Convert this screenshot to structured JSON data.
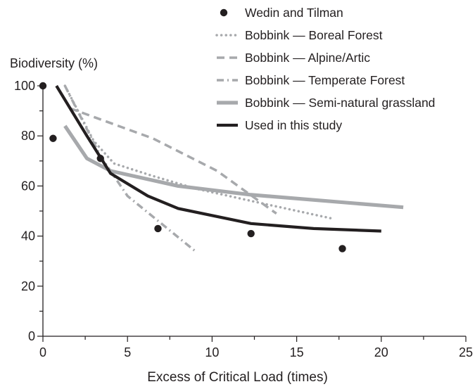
{
  "chart_data": {
    "type": "line",
    "title": "",
    "xlabel": "Excess of Critical Load (times)",
    "ylabel": "Biodiversity (%)",
    "xlim": [
      0,
      25
    ],
    "ylim": [
      0,
      100
    ],
    "x_ticks": [
      0,
      5,
      10,
      15,
      20,
      25
    ],
    "y_ticks": [
      0,
      20,
      40,
      60,
      80,
      100
    ],
    "grid": false,
    "legend_position": "top-right",
    "series": [
      {
        "name": "Wedin and Tilman",
        "kind": "scatter",
        "color": "#231f20",
        "points": [
          [
            0,
            100
          ],
          [
            0.6,
            79
          ],
          [
            3.4,
            71
          ],
          [
            6.8,
            43
          ],
          [
            12.3,
            41
          ],
          [
            17.7,
            35
          ]
        ]
      },
      {
        "name": "Bobbink — Boreal Forest",
        "kind": "line",
        "style": "dotted",
        "color": "#a7a9ac",
        "points": [
          [
            1.3,
            100
          ],
          [
            3.0,
            78
          ],
          [
            4.2,
            69
          ],
          [
            6.5,
            64
          ],
          [
            9.0,
            59
          ],
          [
            13.0,
            53
          ],
          [
            17.1,
            47
          ]
        ]
      },
      {
        "name": "Bobbink — Alpine/Artic",
        "kind": "line",
        "style": "dashed",
        "color": "#a7a9ac",
        "points": [
          [
            1.6,
            91
          ],
          [
            6.5,
            79
          ],
          [
            10.3,
            66
          ],
          [
            13.8,
            49
          ]
        ]
      },
      {
        "name": "Bobbink — Temperate Forest",
        "kind": "line",
        "style": "dashdot",
        "color": "#a7a9ac",
        "points": [
          [
            1.3,
            100
          ],
          [
            3.4,
            72
          ],
          [
            5.0,
            56
          ],
          [
            9.0,
            34
          ]
        ]
      },
      {
        "name": "Bobbink — Semi-natural grassland",
        "kind": "line",
        "style": "thick",
        "color": "#a7a9ac",
        "points": [
          [
            1.3,
            84
          ],
          [
            2.6,
            71
          ],
          [
            4.0,
            66
          ],
          [
            8.0,
            60
          ],
          [
            12.3,
            56.5
          ],
          [
            21.3,
            51.5
          ]
        ]
      },
      {
        "name": "Used in this study",
        "kind": "line",
        "style": "thick",
        "color": "#231f20",
        "points": [
          [
            0.8,
            100
          ],
          [
            2.6,
            80
          ],
          [
            4.0,
            65
          ],
          [
            6.2,
            56
          ],
          [
            8.0,
            51
          ],
          [
            12.3,
            45
          ],
          [
            16.0,
            43
          ],
          [
            20.0,
            42
          ]
        ]
      }
    ]
  }
}
